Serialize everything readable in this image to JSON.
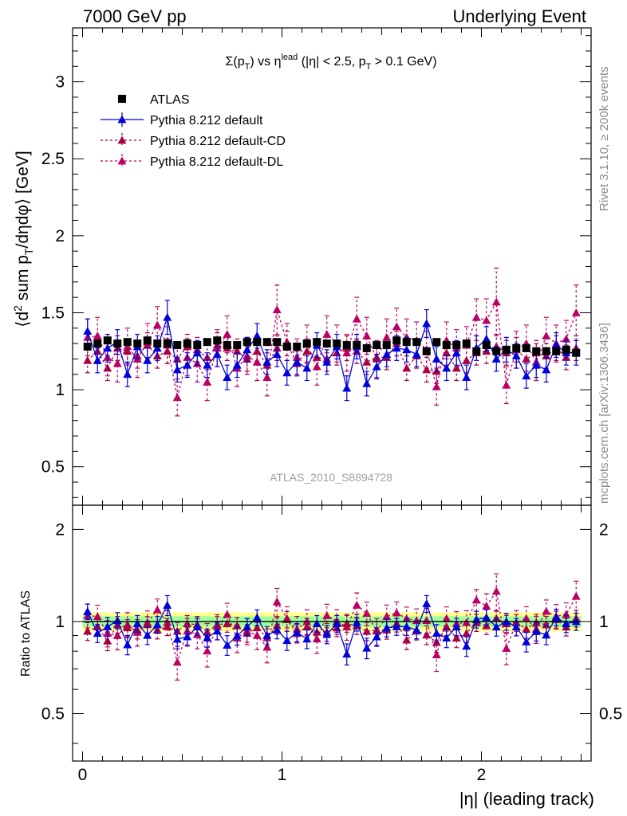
{
  "header": {
    "left": "7000 GeV pp",
    "right": "Underlying Event"
  },
  "side_labels": {
    "rivet": "Rivet 3.1.10, ≥ 200k events",
    "mcplots": "mcplots.cern.ch [arXiv:1306.3436]"
  },
  "watermark": "ATLAS_2010_S8894728",
  "title_text": {
    "part1": "Σ(p",
    "sub1": "T",
    "part2": ") vs η",
    "sup": "lead",
    "part3": " (|η| < 2.5, p",
    "sub2": "T",
    "part4": " > 0.1 GeV)"
  },
  "ylabel_main": {
    "part1": "⟨d",
    "sup": "2",
    "part2": " sum p",
    "sub": "T",
    "part3": "/dηdφ⟩ [GeV]"
  },
  "ylabel_ratio": "Ratio to ATLAS",
  "xlabel": "|η| (leading track)",
  "colors": {
    "atlas": "#000000",
    "default": "#0000dd",
    "cd": "#aa0044",
    "dl": "#bb0066",
    "band_inner": "#9dff9d",
    "band_outer": "#ffff88"
  },
  "legend": [
    {
      "key": "atlas",
      "label": "ATLAS"
    },
    {
      "key": "default",
      "label": "Pythia 8.212 default"
    },
    {
      "key": "cd",
      "label": "Pythia 8.212 default-CD"
    },
    {
      "key": "dl",
      "label": "Pythia 8.212 default-DL"
    }
  ],
  "chart_data": {
    "type": "scatter",
    "x_range": [
      -0.05,
      2.55
    ],
    "main_ylim": [
      0.25,
      3.35
    ],
    "ratio_ylim": [
      0.35,
      2.4
    ],
    "x_ticks": [
      0,
      1,
      2
    ],
    "x_tick_labels": [
      "0",
      "1",
      "2"
    ],
    "main_y_ticks": [
      0.5,
      1,
      1.5,
      2,
      2.5,
      3
    ],
    "main_y_tick_labels": [
      "0.5",
      "1",
      "1.5",
      "2",
      "2.5",
      "3"
    ],
    "ratio_y_ticks": [
      0.5,
      1,
      2
    ],
    "ratio_y_tick_labels": [
      "0.5",
      "1",
      "2"
    ],
    "x": [
      0.025,
      0.075,
      0.125,
      0.175,
      0.225,
      0.275,
      0.325,
      0.375,
      0.425,
      0.475,
      0.525,
      0.575,
      0.625,
      0.675,
      0.725,
      0.775,
      0.825,
      0.875,
      0.925,
      0.975,
      1.025,
      1.075,
      1.125,
      1.175,
      1.225,
      1.275,
      1.325,
      1.375,
      1.425,
      1.475,
      1.525,
      1.575,
      1.625,
      1.675,
      1.725,
      1.775,
      1.825,
      1.875,
      1.925,
      1.975,
      2.025,
      2.075,
      2.125,
      2.175,
      2.225,
      2.275,
      2.325,
      2.375,
      2.425,
      2.475
    ],
    "series": [
      {
        "name": "ATLAS",
        "key": "atlas",
        "values": [
          1.28,
          1.3,
          1.32,
          1.3,
          1.31,
          1.3,
          1.32,
          1.3,
          1.3,
          1.29,
          1.3,
          1.29,
          1.31,
          1.32,
          1.29,
          1.29,
          1.31,
          1.31,
          1.31,
          1.31,
          1.28,
          1.28,
          1.3,
          1.31,
          1.3,
          1.3,
          1.29,
          1.29,
          1.27,
          1.29,
          1.29,
          1.32,
          1.31,
          1.31,
          1.25,
          1.31,
          1.29,
          1.29,
          1.3,
          1.25,
          1.29,
          1.25,
          1.26,
          1.27,
          1.27,
          1.25,
          1.25,
          1.25,
          1.26,
          1.24
        ],
        "errors": [
          0.02,
          0.02,
          0.02,
          0.02,
          0.02,
          0.02,
          0.02,
          0.02,
          0.02,
          0.02,
          0.02,
          0.02,
          0.02,
          0.02,
          0.02,
          0.02,
          0.02,
          0.02,
          0.02,
          0.02,
          0.02,
          0.02,
          0.02,
          0.02,
          0.02,
          0.02,
          0.02,
          0.02,
          0.02,
          0.02,
          0.02,
          0.02,
          0.02,
          0.02,
          0.02,
          0.02,
          0.02,
          0.02,
          0.02,
          0.02,
          0.02,
          0.02,
          0.02,
          0.02,
          0.02,
          0.02,
          0.02,
          0.02,
          0.02,
          0.02
        ]
      },
      {
        "name": "Pythia 8.212 default",
        "key": "default",
        "values": [
          1.38,
          1.19,
          1.27,
          1.31,
          1.1,
          1.28,
          1.19,
          1.27,
          1.47,
          1.13,
          1.16,
          1.24,
          1.16,
          1.23,
          1.08,
          1.16,
          1.26,
          1.35,
          1.18,
          1.23,
          1.11,
          1.18,
          1.14,
          1.29,
          1.18,
          1.28,
          1.01,
          1.28,
          1.04,
          1.15,
          1.23,
          1.27,
          1.26,
          1.23,
          1.43,
          1.2,
          1.14,
          1.24,
          1.08,
          1.27,
          1.33,
          1.2,
          1.26,
          1.22,
          1.09,
          1.16,
          1.13,
          1.29,
          1.24,
          1.24
        ],
        "errors": [
          0.08,
          0.08,
          0.09,
          0.08,
          0.08,
          0.08,
          0.08,
          0.08,
          0.11,
          0.08,
          0.08,
          0.08,
          0.08,
          0.08,
          0.08,
          0.08,
          0.08,
          0.08,
          0.08,
          0.08,
          0.08,
          0.08,
          0.08,
          0.08,
          0.08,
          0.08,
          0.08,
          0.08,
          0.08,
          0.08,
          0.08,
          0.08,
          0.08,
          0.08,
          0.09,
          0.08,
          0.08,
          0.08,
          0.08,
          0.08,
          0.08,
          0.08,
          0.08,
          0.08,
          0.08,
          0.08,
          0.08,
          0.08,
          0.08,
          0.08
        ]
      },
      {
        "name": "Pythia 8.212 default-CD",
        "key": "cd",
        "values": [
          1.19,
          1.25,
          1.14,
          1.27,
          1.25,
          1.22,
          1.29,
          1.22,
          1.25,
          1.2,
          1.28,
          1.26,
          1.21,
          1.29,
          1.27,
          1.25,
          1.2,
          1.25,
          1.16,
          1.27,
          1.3,
          1.17,
          1.25,
          1.21,
          1.2,
          1.24,
          1.27,
          1.25,
          1.18,
          1.21,
          1.21,
          1.3,
          1.14,
          1.22,
          1.13,
          1.12,
          1.24,
          1.14,
          1.19,
          1.24,
          1.25,
          1.28,
          1.24,
          1.26,
          1.2,
          1.24,
          1.22,
          1.27,
          1.21,
          1.27
        ],
        "errors": [
          0.08,
          0.08,
          0.08,
          0.08,
          0.08,
          0.08,
          0.08,
          0.08,
          0.08,
          0.08,
          0.08,
          0.08,
          0.08,
          0.08,
          0.08,
          0.08,
          0.08,
          0.08,
          0.08,
          0.08,
          0.08,
          0.08,
          0.08,
          0.08,
          0.08,
          0.08,
          0.08,
          0.08,
          0.08,
          0.08,
          0.08,
          0.08,
          0.08,
          0.08,
          0.08,
          0.08,
          0.08,
          0.08,
          0.08,
          0.08,
          0.08,
          0.08,
          0.08,
          0.08,
          0.08,
          0.08,
          0.08,
          0.08,
          0.08,
          0.08
        ]
      },
      {
        "name": "Pythia 8.212 default-DL",
        "key": "dl",
        "values": [
          1.34,
          1.35,
          1.21,
          1.17,
          1.28,
          1.2,
          1.31,
          1.42,
          1.29,
          0.95,
          1.21,
          1.17,
          1.05,
          1.27,
          1.36,
          1.14,
          1.22,
          1.18,
          1.08,
          1.52,
          1.31,
          1.21,
          1.3,
          1.15,
          1.36,
          1.3,
          1.24,
          1.46,
          1.35,
          1.2,
          1.34,
          1.41,
          1.34,
          1.32,
          1.26,
          1.02,
          1.32,
          1.27,
          1.29,
          1.47,
          1.45,
          1.57,
          1.03,
          1.26,
          1.3,
          1.18,
          1.35,
          1.3,
          1.33,
          1.5
        ],
        "errors": [
          0.12,
          0.12,
          0.12,
          0.12,
          0.12,
          0.12,
          0.12,
          0.12,
          0.12,
          0.12,
          0.12,
          0.12,
          0.12,
          0.12,
          0.12,
          0.12,
          0.12,
          0.12,
          0.12,
          0.16,
          0.12,
          0.12,
          0.12,
          0.12,
          0.12,
          0.12,
          0.12,
          0.14,
          0.12,
          0.12,
          0.12,
          0.12,
          0.12,
          0.12,
          0.12,
          0.12,
          0.12,
          0.12,
          0.12,
          0.12,
          0.14,
          0.22,
          0.12,
          0.12,
          0.12,
          0.12,
          0.12,
          0.12,
          0.12,
          0.18
        ]
      }
    ],
    "ratio_band": {
      "inner": 0.04,
      "outer": 0.07
    }
  }
}
